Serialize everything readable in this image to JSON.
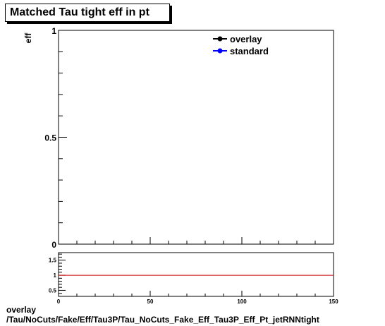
{
  "chart_data": [
    {
      "type": "line",
      "title": "Matched Tau tight eff in pt",
      "ylabel": "eff",
      "xlim": [
        0,
        150
      ],
      "ylim": [
        0,
        1
      ],
      "y_ticks": [
        "0",
        "0.5",
        "1"
      ],
      "legend_placement": "top-right",
      "series": [
        {
          "name": "overlay",
          "color": "#000000",
          "x": [],
          "y": []
        },
        {
          "name": "standard",
          "color": "#0000ff",
          "x": [],
          "y": []
        }
      ]
    },
    {
      "type": "line",
      "xlim": [
        0,
        150
      ],
      "ylim": [
        0.3,
        1.75
      ],
      "x_ticks": [
        "0",
        "50",
        "100",
        "150"
      ],
      "y_ticks": [
        "0.5",
        "1",
        "1.5"
      ],
      "reference_line": {
        "y": 1,
        "color": "#cc0000"
      }
    }
  ],
  "footer": {
    "line1": "overlay",
    "line2": "/Tau/NoCuts/Fake/Eff/Tau3P/Tau_NoCuts_Fake_Eff_Tau3P_Eff_Pt_jetRNNtight"
  }
}
